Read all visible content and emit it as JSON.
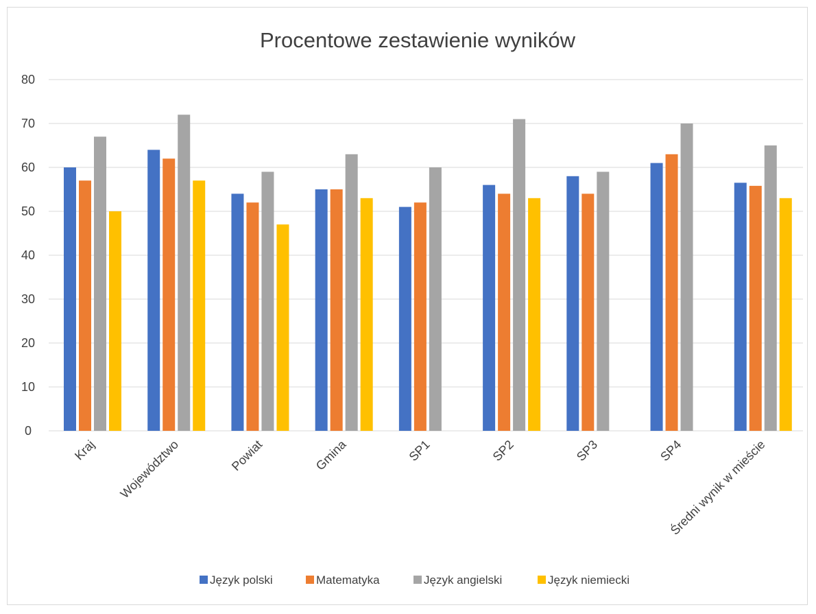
{
  "chart_data": {
    "type": "bar",
    "title": "Procentowe zestawienie wyników",
    "xlabel": "",
    "ylabel": "",
    "ylim": [
      0,
      80
    ],
    "yticks": [
      0,
      10,
      20,
      30,
      40,
      50,
      60,
      70,
      80
    ],
    "grid": true,
    "legend_position": "bottom",
    "categories": [
      "Kraj",
      "Województwo",
      "Powiat",
      "Gmina",
      "SP1",
      "SP2",
      "SP3",
      "SP4",
      "Średni wynik w mieście"
    ],
    "series": [
      {
        "name": "Język polski",
        "color": "#4472c4",
        "values": [
          60,
          64,
          54,
          55,
          51,
          56,
          58,
          61,
          56.5
        ]
      },
      {
        "name": "Matematyka",
        "color": "#ed7d31",
        "values": [
          57,
          62,
          52,
          55,
          52,
          54,
          54,
          63,
          55.8
        ]
      },
      {
        "name": "Język angielski",
        "color": "#a5a5a5",
        "values": [
          67,
          72,
          59,
          63,
          60,
          71,
          59,
          70,
          65
        ]
      },
      {
        "name": "Język niemiecki",
        "color": "#ffc000",
        "values": [
          50,
          57,
          47,
          53,
          null,
          53,
          null,
          null,
          53
        ]
      }
    ]
  }
}
